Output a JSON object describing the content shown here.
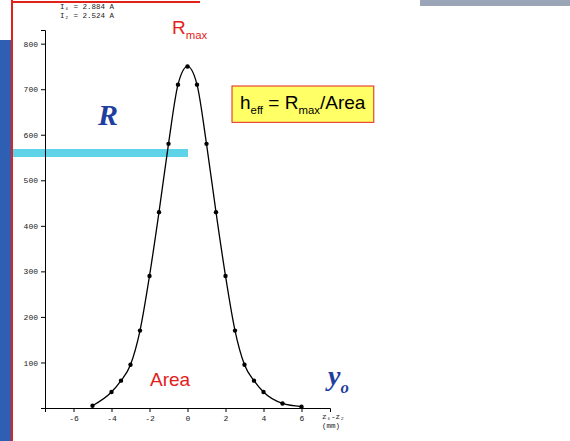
{
  "chart_data": {
    "type": "line",
    "notes": [
      "I₁ = 2.884 A",
      "I₂ = 2.524 A"
    ],
    "y_label": "R",
    "x_label": [
      {
        "text": "y"
      },
      {
        "text": "o",
        "sub": true
      }
    ],
    "x_axis_title": "z₁-z₂ (mm)",
    "annotations": {
      "peak": [
        {
          "text": "R"
        },
        {
          "text": "max",
          "sub": true
        }
      ],
      "area": [
        {
          "text": "Area"
        }
      ],
      "formula": [
        {
          "text": "h"
        },
        {
          "text": "eff",
          "sub": true
        },
        {
          "text": " = R"
        },
        {
          "text": "max",
          "sub": true
        },
        {
          "text": "/Area"
        }
      ]
    },
    "x": [
      -5,
      -4,
      -3.5,
      -3,
      -2.5,
      -2,
      -1.5,
      -1,
      -0.5,
      0,
      0.5,
      1,
      1.5,
      2,
      2.5,
      3,
      3.5,
      4,
      5,
      6
    ],
    "series": [
      {
        "color": "#000000",
        "marker": "circle",
        "line_style": "solid",
        "values": [
          5,
          35,
          60,
          95,
          170,
          290,
          430,
          580,
          710,
          750,
          710,
          580,
          430,
          290,
          170,
          95,
          60,
          35,
          10,
          3
        ]
      }
    ],
    "xlim": [
      -7.5,
      7.5
    ],
    "ylim": [
      0,
      830
    ],
    "xticks": [
      -6,
      -4,
      -2,
      0,
      2,
      4,
      6
    ],
    "yticks": [
      100,
      200,
      300,
      400,
      500,
      600,
      700,
      800
    ],
    "grid": false
  }
}
